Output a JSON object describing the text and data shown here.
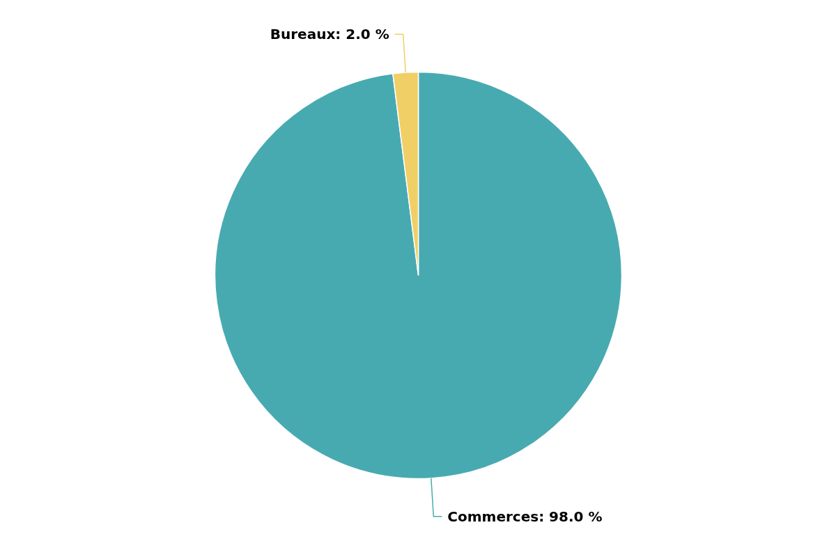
{
  "chart_data": {
    "type": "pie",
    "categories": [
      "Commerces",
      "Bureaux"
    ],
    "values": [
      98.0,
      2.0
    ],
    "colors": [
      "#48aab1",
      "#f0cf67"
    ],
    "value_labels": [
      "98.0 %",
      "2.0 %"
    ]
  }
}
